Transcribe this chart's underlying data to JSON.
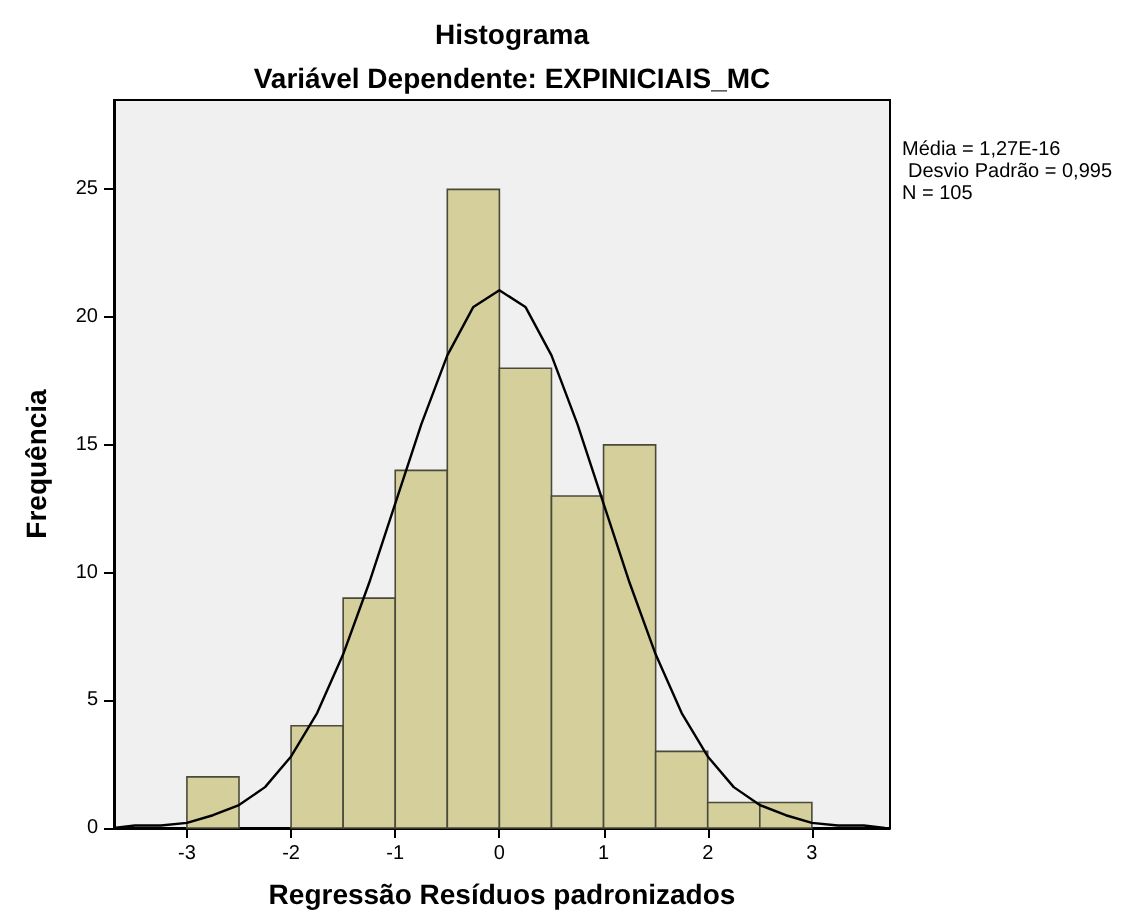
{
  "chart_data": {
    "type": "histogram",
    "title": "Histograma",
    "subtitle": "Variável Dependente: EXPINICIAIS_MC",
    "xlabel": "Regressão Resíduos padronizados",
    "ylabel": "Frequência",
    "xlim": [
      -3.7,
      3.75
    ],
    "xticks": [
      -3,
      -2,
      -1,
      0,
      1,
      2,
      3
    ],
    "ylim": [
      0,
      28.5
    ],
    "yticks": [
      0,
      5,
      10,
      15,
      20,
      25
    ],
    "grid": false,
    "annotations": [
      "Média = 1,27E-16",
      "Desvio Padrão = 0,995",
      "N = 105"
    ],
    "series": [
      {
        "type": "histogram",
        "color": "#d4cf9b",
        "bins": [
          -3,
          -2.5,
          -2,
          -1.5,
          -1,
          -0.5,
          0,
          0.5,
          1,
          1.5,
          2,
          2.5,
          3
        ],
        "values": [
          2,
          0,
          4,
          9,
          14,
          25,
          18,
          13,
          15,
          3,
          1,
          1
        ]
      },
      {
        "type": "line",
        "color": "#000000",
        "marker": "none",
        "x": [
          -3.7,
          -3.5,
          -3.25,
          -3,
          -2.75,
          -2.5,
          -2.25,
          -2,
          -1.75,
          -1.5,
          -1.25,
          -1,
          -0.75,
          -0.5,
          -0.25,
          0,
          0.25,
          0.5,
          0.75,
          1,
          1.25,
          1.5,
          1.75,
          2,
          2.25,
          2.5,
          2.75,
          3,
          3.25,
          3.5,
          3.7
        ],
        "values": [
          0,
          0.1,
          0.1,
          0.2,
          0.5,
          0.9,
          1.6,
          2.8,
          4.5,
          6.8,
          9.6,
          12.7,
          15.8,
          18.5,
          20.4,
          21.05,
          20.4,
          18.5,
          15.8,
          12.7,
          9.6,
          6.8,
          4.5,
          2.8,
          1.6,
          0.9,
          0.5,
          0.2,
          0.1,
          0.1,
          0
        ]
      }
    ]
  }
}
